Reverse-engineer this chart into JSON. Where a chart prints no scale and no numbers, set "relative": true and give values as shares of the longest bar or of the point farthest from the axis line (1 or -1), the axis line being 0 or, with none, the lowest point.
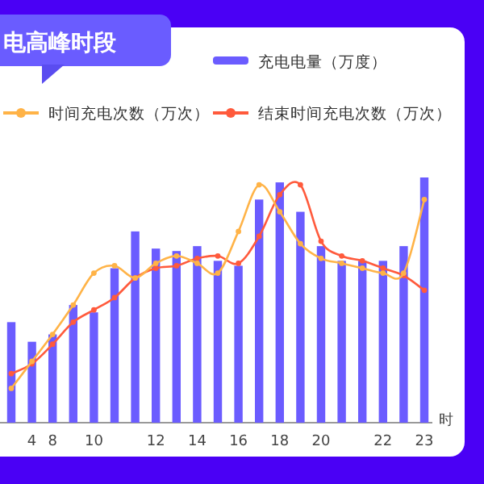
{
  "chart_data": {
    "type": "bar",
    "title": "电高峰时段",
    "xlabel": "时",
    "relative": true,
    "legend": "top",
    "categories": [
      null,
      "4",
      "8",
      null,
      "10",
      null,
      null,
      "12",
      null,
      "14",
      null,
      "16",
      null,
      "18",
      null,
      "20",
      null,
      null,
      "22",
      null,
      "23"
    ],
    "series": [
      {
        "name": "充电电量（万度）",
        "color": "#6b5cff",
        "values": [
          0.41,
          0.33,
          0.36,
          0.48,
          0.45,
          0.63,
          0.78,
          0.71,
          0.7,
          0.72,
          0.66,
          0.64,
          0.91,
          0.98,
          0.86,
          0.72,
          0.66,
          0.66,
          0.66,
          0.72,
          1
        ]
      },
      {
        "name": "结束时间充电次数（万次）",
        "type": "line",
        "color": "#ff5a3c",
        "marker": "circle",
        "values": [
          0.2,
          0.24,
          0.32,
          0.41,
          0.46,
          0.51,
          0.59,
          0.63,
          0.64,
          0.67,
          0.68,
          0.65,
          0.76,
          0.93,
          0.97,
          0.74,
          0.68,
          0.66,
          0.63,
          0.6,
          0.54
        ]
      },
      {
        "name": "时间充电次数（万次）",
        "type": "line",
        "color": "#ffb347",
        "marker": "circle",
        "values": [
          0.14,
          0.25,
          0.36,
          0.48,
          0.61,
          0.64,
          0.59,
          0.65,
          0.68,
          0.65,
          0.61,
          0.78,
          0.97,
          0.86,
          0.73,
          0.67,
          0.65,
          0.63,
          0.61,
          0.61,
          0.91
        ]
      }
    ]
  }
}
